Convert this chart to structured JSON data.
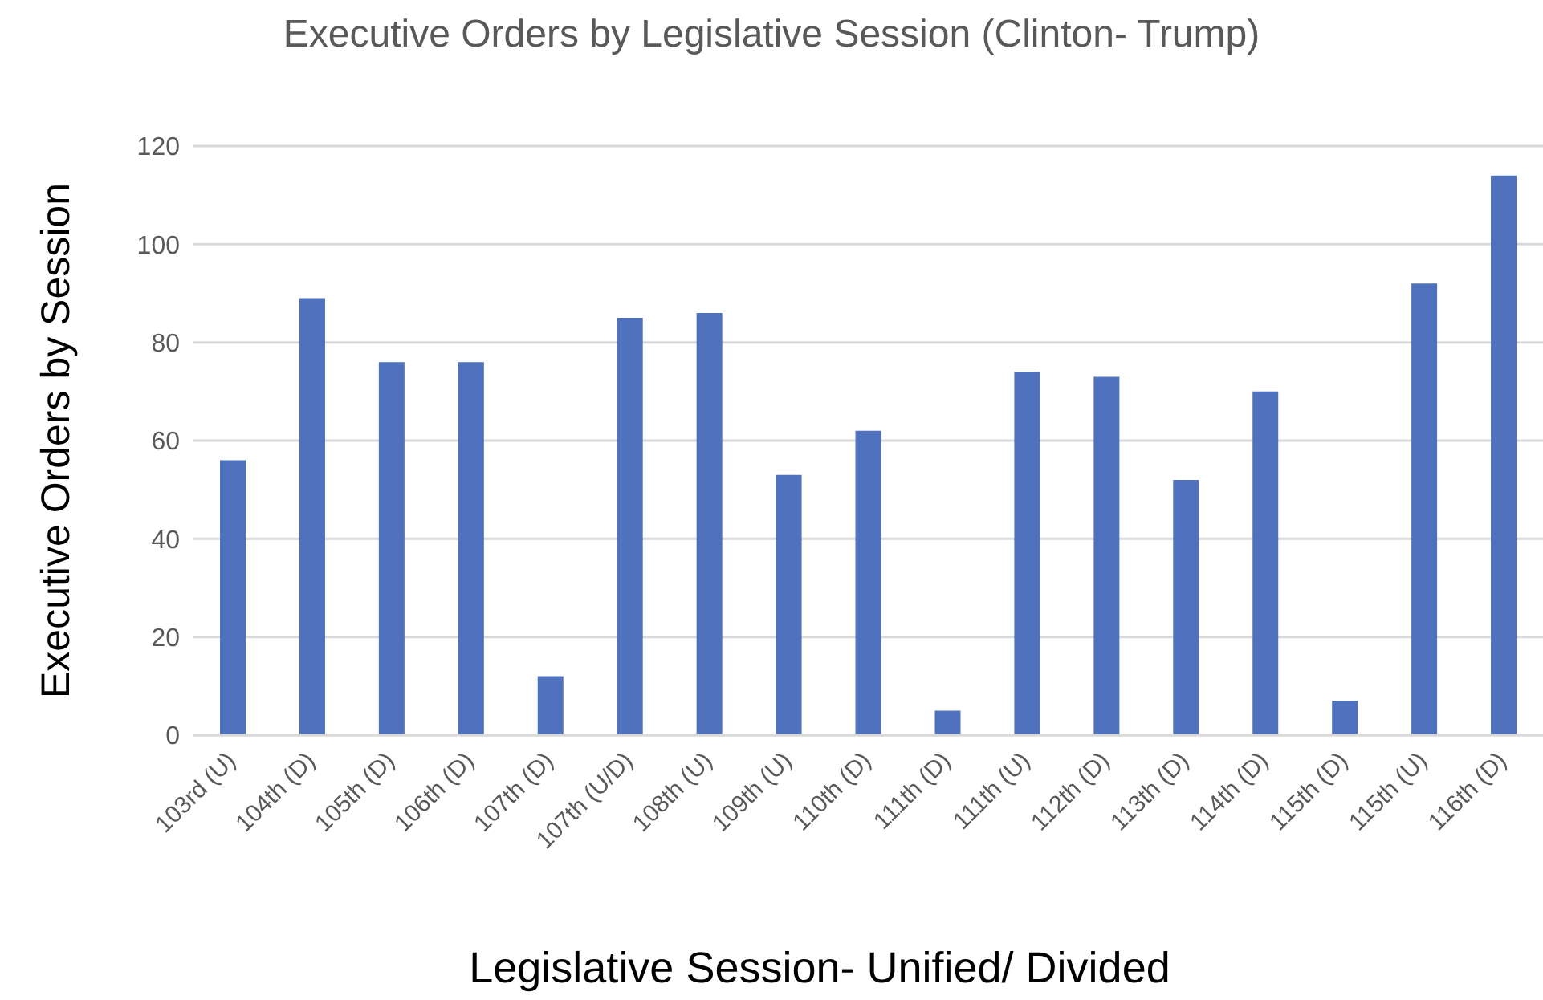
{
  "chart_data": {
    "type": "bar",
    "title": "Executive Orders by Legislative Session (Clinton- Trump)",
    "xlabel": "Legislative Session- Unified/ Divided",
    "ylabel": "Executive Orders by Session",
    "categories": [
      "103rd (U)",
      "104th (D)",
      "105th (D)",
      "106th (D)",
      "107th (D)",
      "107th (U/D)",
      "108th (U)",
      "109th (U)",
      "110th (D)",
      "111th (D)",
      "111th (U)",
      "112th (D)",
      "113th (D)",
      "114th (D)",
      "115th (D)",
      "115th (U)",
      "116th (D)"
    ],
    "values": [
      56,
      89,
      76,
      76,
      12,
      85,
      86,
      53,
      62,
      5,
      74,
      73,
      52,
      70,
      7,
      92,
      114
    ],
    "color": "#4f71be",
    "ylim": [
      0,
      120
    ],
    "yticks": [
      0,
      20,
      40,
      60,
      80,
      100,
      120
    ],
    "grid": "y"
  }
}
